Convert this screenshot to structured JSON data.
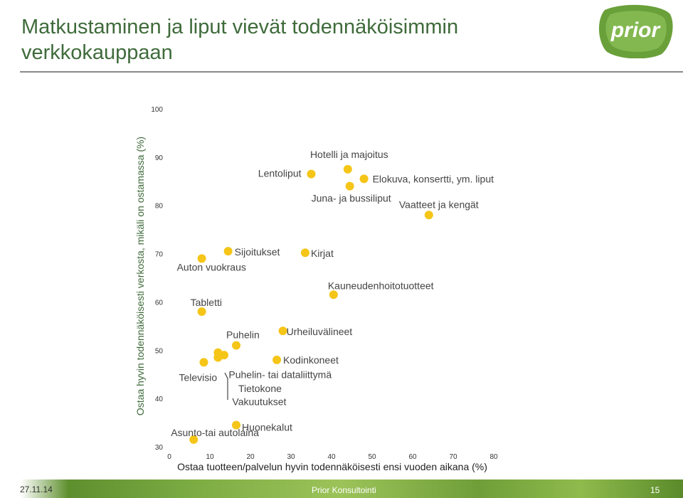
{
  "slide": {
    "title": "Matkustaminen ja liput vievät todennäköisimmin verkkokauppaan",
    "logo_text": "prior",
    "footer_date": "27.11.14",
    "footer_company": "Prior Konsultointi",
    "page_number": "15"
  },
  "colors": {
    "title": "#3f6b3b",
    "point": "#f5c518",
    "logo_green": "#6aa03a",
    "rule": "#8a8a8a"
  },
  "chart_data": {
    "type": "scatter",
    "xlabel": "Ostaa tuotteen/palvelun  hyvin todennäköisesti ensi vuoden aikana (%)",
    "ylabel": "Ostaa hyvin todennäköisesti verkosta, mikäli on ostamassa (%)",
    "xlim": [
      0,
      80
    ],
    "ylim": [
      30,
      100
    ],
    "x_ticks": [
      0,
      10,
      20,
      30,
      40,
      50,
      60,
      70,
      80
    ],
    "y_ticks": [
      30,
      40,
      50,
      60,
      70,
      80,
      90,
      100
    ],
    "grid": false,
    "points": [
      {
        "label": "Lentoliput",
        "x": 35,
        "y": 86.5
      },
      {
        "label": "Hotelli ja majoitus",
        "x": 44,
        "y": 87.5
      },
      {
        "label": "Elokuva, konsertti, ym. liput",
        "x": 48,
        "y": 85.5
      },
      {
        "label": "Juna- ja bussiliput",
        "x": 44.5,
        "y": 84
      },
      {
        "label": "Vaatteet ja kengät",
        "x": 64,
        "y": 78
      },
      {
        "label": "Sijoitukset",
        "x": 14.5,
        "y": 70.5
      },
      {
        "label": "Auton vuokraus",
        "x": 8,
        "y": 69
      },
      {
        "label": "Kirjat",
        "x": 33.5,
        "y": 70.2
      },
      {
        "label": "Kauneudenhoitotuotteet",
        "x": 40.5,
        "y": 61.5
      },
      {
        "label": "Tabletti",
        "x": 8,
        "y": 58
      },
      {
        "label": "Urheiluvälineet",
        "x": 28,
        "y": 54
      },
      {
        "label": "Puhelin",
        "x": 16.5,
        "y": 51
      },
      {
        "label": "Puhelin- tai dataliittymä",
        "x": 12,
        "y": 49.5
      },
      {
        "label": "Tietokone",
        "x": 13.5,
        "y": 49
      },
      {
        "label": "Vakuutukset",
        "x": 12,
        "y": 48.5
      },
      {
        "label": "Kodinkoneet",
        "x": 26.5,
        "y": 48
      },
      {
        "label": "Televisio",
        "x": 8.5,
        "y": 47.5
      },
      {
        "label": "Huonekalut",
        "x": 16.5,
        "y": 34.5
      },
      {
        "label": "Asunto-tai autolaina",
        "x": 6,
        "y": 31.5
      }
    ]
  }
}
